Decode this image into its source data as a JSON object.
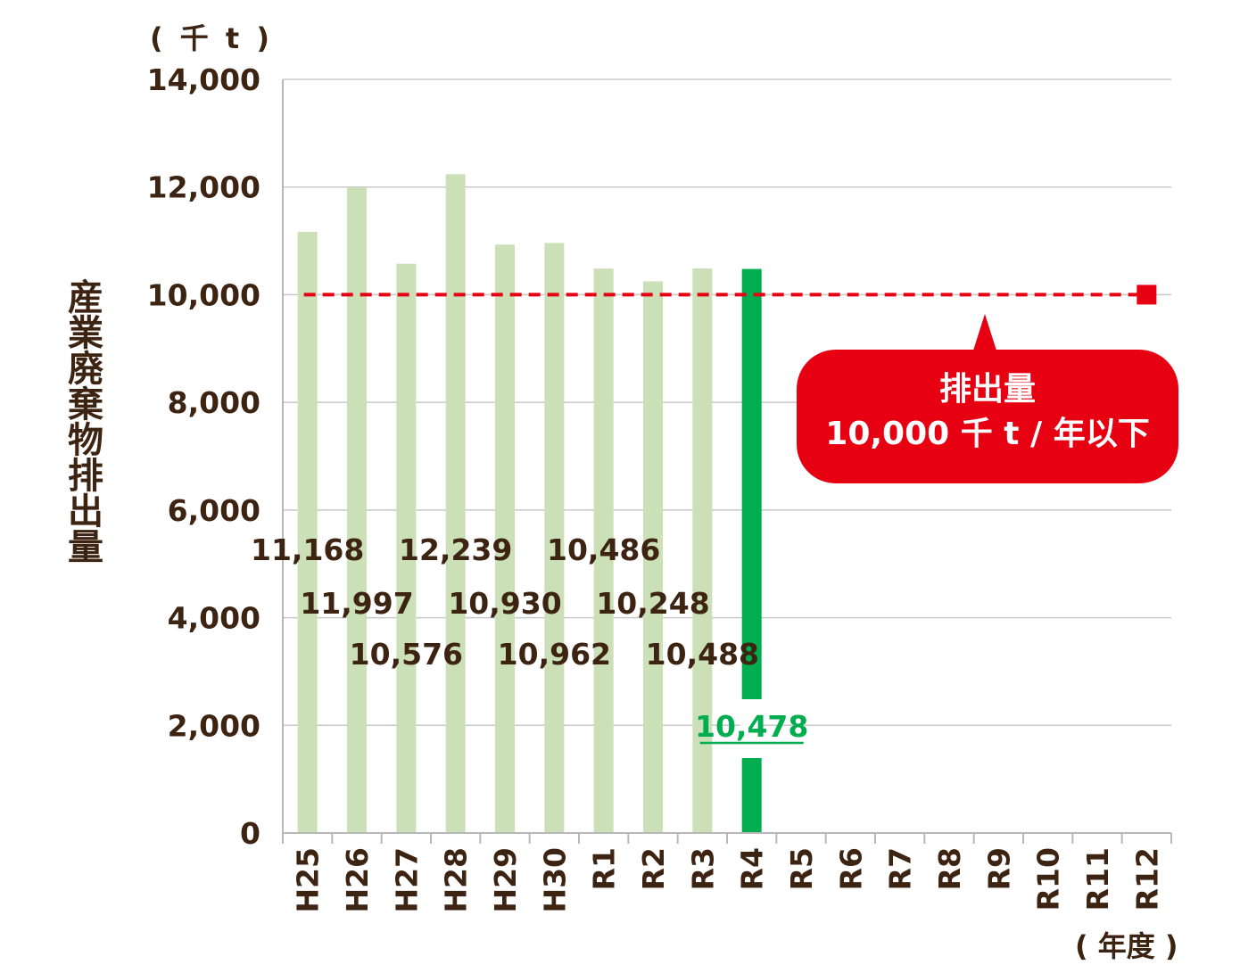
{
  "chart_data": {
    "type": "bar",
    "y_unit": "( 千 t )",
    "x_unit": "( 年度 )",
    "ylabel": "産業廃棄物排出量",
    "ylim": [
      0,
      14000
    ],
    "y_ticks": [
      "0",
      "2,000",
      "4,000",
      "6,000",
      "8,000",
      "10,000",
      "12,000",
      "14,000"
    ],
    "y_tick_values": [
      0,
      2000,
      4000,
      6000,
      8000,
      10000,
      12000,
      14000
    ],
    "grid": true,
    "categories": [
      "H25",
      "H26",
      "H27",
      "H28",
      "H29",
      "H30",
      "R1",
      "R2",
      "R3",
      "R4",
      "R5",
      "R6",
      "R7",
      "R8",
      "R9",
      "R10",
      "R11",
      "R12"
    ],
    "values": [
      11168,
      11997,
      10576,
      12239,
      10930,
      10962,
      10486,
      10248,
      10488,
      10478,
      null,
      null,
      null,
      null,
      null,
      null,
      null,
      null
    ],
    "value_labels": [
      "11,168",
      "11,997",
      "10,576",
      "12,239",
      "10,930",
      "10,962",
      "10,486",
      "10,248",
      "10,488",
      "10,478",
      "",
      "",
      "",
      "",
      "",
      "",
      "",
      ""
    ],
    "highlight_index": 9,
    "target": {
      "value": 10000,
      "from_category": "H25",
      "to_category": "R12",
      "line_style": "dashed",
      "label_line1": "排出量",
      "label_line2": "10,000 千 t / 年以下"
    },
    "colors": {
      "past_bar": "#cce0b8",
      "current_bar": "#00ad4f",
      "current_label": "#00ad4f",
      "target": "#e60012",
      "text": "#3d2412",
      "grid": "#c8c8c8"
    }
  }
}
